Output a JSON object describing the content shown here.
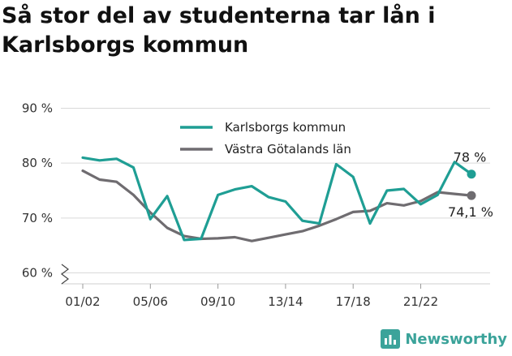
{
  "chart_data": {
    "type": "line",
    "title": "Så stor del av studenterna tar lån i Karlsborgs kommun",
    "x": [
      "01/02",
      "02/03",
      "03/04",
      "04/05",
      "05/06",
      "06/07",
      "07/08",
      "08/09",
      "09/10",
      "10/11",
      "11/12",
      "12/13",
      "13/14",
      "14/15",
      "15/16",
      "16/17",
      "17/18",
      "18/19",
      "19/20",
      "20/21",
      "21/22",
      "22/23",
      "23/24",
      "24/25"
    ],
    "tick_labels": [
      "01/02",
      "05/06",
      "09/10",
      "13/14",
      "17/18",
      "21/22"
    ],
    "y_ticks": [
      60,
      70,
      80,
      90
    ],
    "y_tick_labels": [
      "60 %",
      "70 %",
      "80 %",
      "90 %"
    ],
    "ylim": [
      58,
      92
    ],
    "y_axis_break": true,
    "grid": true,
    "legend_position": "top-center",
    "series": [
      {
        "name": "Karlsborgs kommun",
        "color": "#1f9e94",
        "values": [
          81.0,
          80.5,
          80.8,
          79.2,
          69.8,
          74.0,
          66.0,
          66.2,
          74.2,
          75.2,
          75.8,
          73.8,
          73.0,
          69.5,
          69.0,
          79.8,
          77.5,
          69.0,
          75.0,
          75.3,
          72.5,
          74.2,
          80.2,
          78.0
        ],
        "end_label": "78 %"
      },
      {
        "name": "Västra Götalands län",
        "color": "#6f6c70",
        "values": [
          78.6,
          77.0,
          76.6,
          74.2,
          71.0,
          68.2,
          66.7,
          66.2,
          66.3,
          66.5,
          65.8,
          66.4,
          67.0,
          67.6,
          68.6,
          69.8,
          71.1,
          71.3,
          72.7,
          72.3,
          73.1,
          74.7,
          74.4,
          74.1
        ],
        "end_label": "74,1 %"
      }
    ]
  },
  "brand": {
    "name": "Newsworthy",
    "color": "#3ba39a",
    "icon": "bar-chart-icon"
  }
}
